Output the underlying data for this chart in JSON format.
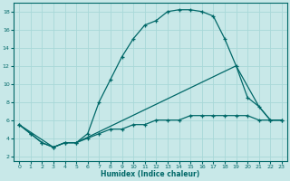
{
  "xlabel": "Humidex (Indice chaleur)",
  "bg_color": "#c8e8e8",
  "grid_color": "#a8d8d8",
  "line_color": "#006868",
  "xlim": [
    -0.5,
    23.5
  ],
  "ylim": [
    1.5,
    19.0
  ],
  "xticks": [
    0,
    1,
    2,
    3,
    4,
    5,
    6,
    7,
    8,
    9,
    10,
    11,
    12,
    13,
    14,
    15,
    16,
    17,
    18,
    19,
    20,
    21,
    22,
    23
  ],
  "yticks": [
    2,
    4,
    6,
    8,
    10,
    12,
    14,
    16,
    18
  ],
  "series1_x": [
    0,
    1,
    2,
    3,
    4,
    5,
    6,
    7,
    8,
    9,
    10,
    11,
    12,
    13,
    14,
    15,
    16,
    17,
    18,
    19,
    20,
    21,
    22,
    23
  ],
  "series1_y": [
    5.5,
    4.5,
    3.5,
    3.0,
    3.5,
    3.5,
    4.5,
    8.0,
    10.5,
    13.0,
    15.0,
    16.5,
    17.0,
    18.0,
    18.2,
    18.2,
    18.0,
    17.5,
    15.0,
    12.0,
    8.5,
    7.5,
    6.0,
    6.0
  ],
  "series2_x": [
    0,
    1,
    2,
    3,
    4,
    5,
    6,
    7,
    8,
    9,
    10,
    11,
    12,
    13,
    14,
    15,
    16,
    17,
    18,
    19,
    20,
    21,
    22,
    23
  ],
  "series2_y": [
    5.5,
    4.5,
    3.5,
    3.0,
    3.5,
    3.5,
    4.0,
    4.5,
    5.0,
    5.0,
    5.5,
    5.5,
    6.0,
    6.0,
    6.0,
    6.5,
    6.5,
    6.5,
    6.5,
    6.5,
    6.5,
    6.0,
    6.0,
    6.0
  ],
  "series3_x": [
    0,
    3,
    4,
    5,
    19,
    21,
    22,
    23
  ],
  "series3_y": [
    5.5,
    3.0,
    3.5,
    3.5,
    12.0,
    7.5,
    6.0,
    6.0
  ]
}
